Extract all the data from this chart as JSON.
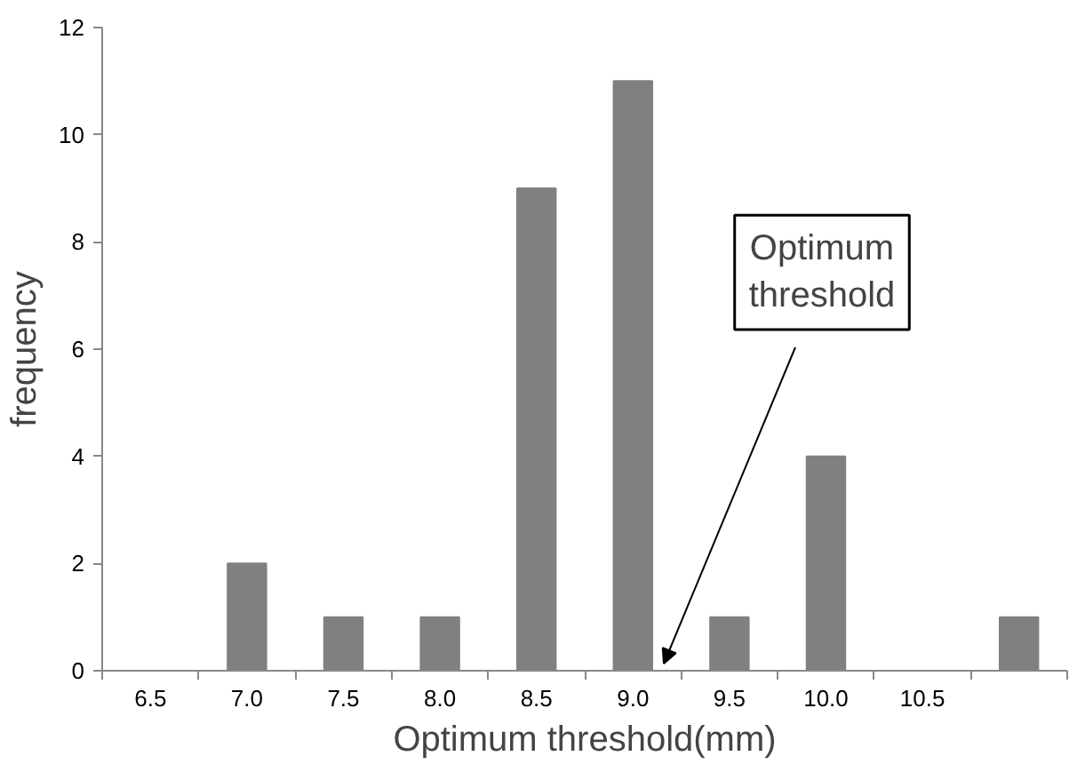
{
  "chart_data": {
    "type": "bar",
    "xlabel": "Optimum threshold(mm)",
    "ylabel": "frequency",
    "categories": [
      "6.5",
      "7.0",
      "7.5",
      "8.0",
      "8.5",
      "9.0",
      "9.5",
      "10.0",
      "10.5",
      null
    ],
    "values": [
      0,
      2,
      1,
      1,
      9,
      11,
      1,
      4,
      0,
      1
    ],
    "color": "#808080",
    "ylim": [
      0,
      12
    ],
    "yticks": [
      0,
      2,
      4,
      6,
      8,
      10,
      12
    ],
    "grid": false,
    "annotations": [
      "Optimum threshold"
    ]
  }
}
